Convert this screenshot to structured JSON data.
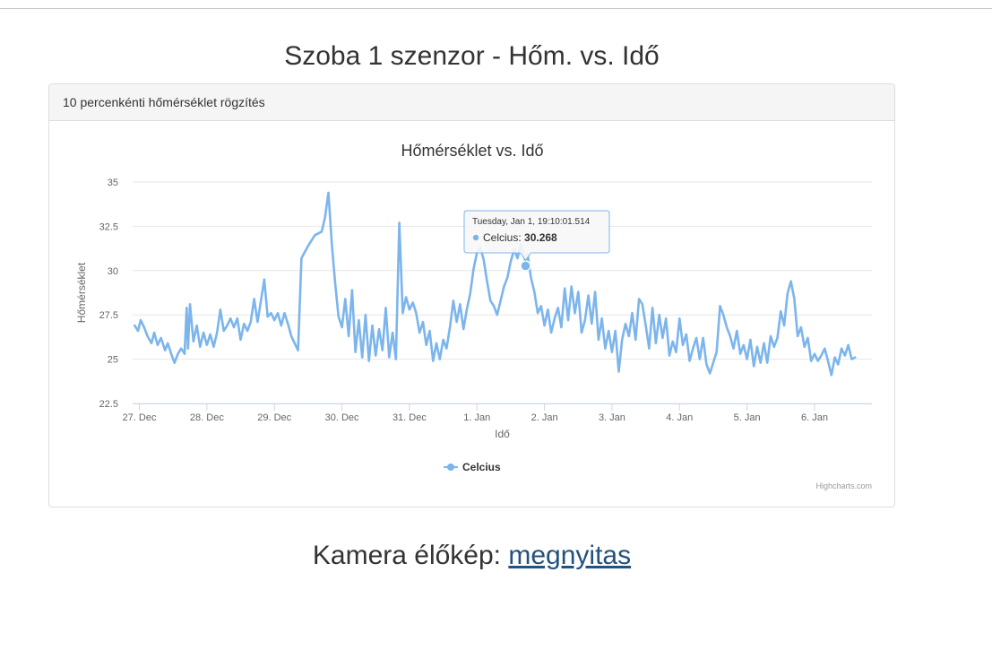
{
  "page": {
    "title": "Szoba 1 szenzor - Hőm. vs. Idő",
    "footer_label": "Kamera élőkép:",
    "footer_link": "megnyitas"
  },
  "panel": {
    "heading": "10 percenkénti hőmérséklet rögzítés"
  },
  "colors": {
    "series": "#7cb5ec",
    "grid": "#e6e6e6",
    "axis": "#ccd6eb",
    "link": "#23527c"
  },
  "tooltip": {
    "header": "Tuesday, Jan 1, 19:10:01.514",
    "series": "Celcius",
    "value": "30.268"
  },
  "chart_data": {
    "type": "line",
    "title": "Hőmérséklet vs. Idő",
    "xlabel": "Idő",
    "ylabel": "Hőmérséklet",
    "credits": "Highcharts.com",
    "ylim": [
      22.5,
      35
    ],
    "yticks": [
      22.5,
      25,
      27.5,
      30,
      32.5,
      35
    ],
    "xlim": [
      -0.1,
      10.85
    ],
    "xticks": [
      {
        "x": 0,
        "label": "27. Dec"
      },
      {
        "x": 1,
        "label": "28. Dec"
      },
      {
        "x": 2,
        "label": "29. Dec"
      },
      {
        "x": 3,
        "label": "30. Dec"
      },
      {
        "x": 4,
        "label": "31. Dec"
      },
      {
        "x": 5,
        "label": "1. Jan"
      },
      {
        "x": 6,
        "label": "2. Jan"
      },
      {
        "x": 7,
        "label": "3. Jan"
      },
      {
        "x": 8,
        "label": "4. Jan"
      },
      {
        "x": 9,
        "label": "5. Jan"
      },
      {
        "x": 10,
        "label": "6. Jan"
      }
    ],
    "legend": "bottom-center",
    "grid": true,
    "series": [
      {
        "name": "Celcius",
        "points": [
          [
            -0.07,
            26.9
          ],
          [
            -0.02,
            26.6
          ],
          [
            0.02,
            27.2
          ],
          [
            0.07,
            26.8
          ],
          [
            0.12,
            26.3
          ],
          [
            0.18,
            25.9
          ],
          [
            0.22,
            26.5
          ],
          [
            0.27,
            25.8
          ],
          [
            0.32,
            26.2
          ],
          [
            0.38,
            25.5
          ],
          [
            0.42,
            25.9
          ],
          [
            0.48,
            25.2
          ],
          [
            0.52,
            24.8
          ],
          [
            0.57,
            25.3
          ],
          [
            0.62,
            25.6
          ],
          [
            0.67,
            25.3
          ],
          [
            0.7,
            27.9
          ],
          [
            0.72,
            25.6
          ],
          [
            0.75,
            28.1
          ],
          [
            0.8,
            26.0
          ],
          [
            0.85,
            26.9
          ],
          [
            0.9,
            25.7
          ],
          [
            0.95,
            26.5
          ],
          [
            1.0,
            25.8
          ],
          [
            1.05,
            26.4
          ],
          [
            1.1,
            25.7
          ],
          [
            1.15,
            26.5
          ],
          [
            1.2,
            27.8
          ],
          [
            1.25,
            26.6
          ],
          [
            1.3,
            26.9
          ],
          [
            1.35,
            27.3
          ],
          [
            1.4,
            26.8
          ],
          [
            1.45,
            27.3
          ],
          [
            1.5,
            26.1
          ],
          [
            1.55,
            27.0
          ],
          [
            1.6,
            26.6
          ],
          [
            1.65,
            27.1
          ],
          [
            1.7,
            28.4
          ],
          [
            1.75,
            27.1
          ],
          [
            1.8,
            28.3
          ],
          [
            1.85,
            29.5
          ],
          [
            1.9,
            27.4
          ],
          [
            1.95,
            27.6
          ],
          [
            2.0,
            27.2
          ],
          [
            2.05,
            27.6
          ],
          [
            2.1,
            26.9
          ],
          [
            2.15,
            27.6
          ],
          [
            2.2,
            27.0
          ],
          [
            2.25,
            26.3
          ],
          [
            2.3,
            25.9
          ],
          [
            2.35,
            25.5
          ],
          [
            2.4,
            30.7
          ],
          [
            2.5,
            31.4
          ],
          [
            2.6,
            32.0
          ],
          [
            2.7,
            32.2
          ],
          [
            2.75,
            33.0
          ],
          [
            2.8,
            34.4
          ],
          [
            2.85,
            31.5
          ],
          [
            2.9,
            29.3
          ],
          [
            2.95,
            27.4
          ],
          [
            3.0,
            26.8
          ],
          [
            3.05,
            28.4
          ],
          [
            3.1,
            26.3
          ],
          [
            3.15,
            28.9
          ],
          [
            3.2,
            25.4
          ],
          [
            3.25,
            27.2
          ],
          [
            3.3,
            25.1
          ],
          [
            3.35,
            27.5
          ],
          [
            3.4,
            24.9
          ],
          [
            3.45,
            26.9
          ],
          [
            3.5,
            25.2
          ],
          [
            3.55,
            26.7
          ],
          [
            3.6,
            25.5
          ],
          [
            3.65,
            27.9
          ],
          [
            3.7,
            25.1
          ],
          [
            3.75,
            26.5
          ],
          [
            3.8,
            25.0
          ],
          [
            3.85,
            32.7
          ],
          [
            3.9,
            27.6
          ],
          [
            3.95,
            28.5
          ],
          [
            4.0,
            27.8
          ],
          [
            4.05,
            28.2
          ],
          [
            4.1,
            27.6
          ],
          [
            4.15,
            26.5
          ],
          [
            4.2,
            27.1
          ],
          [
            4.25,
            25.8
          ],
          [
            4.3,
            26.6
          ],
          [
            4.35,
            24.9
          ],
          [
            4.4,
            25.9
          ],
          [
            4.45,
            25.0
          ],
          [
            4.5,
            26.1
          ],
          [
            4.55,
            25.6
          ],
          [
            4.6,
            26.8
          ],
          [
            4.65,
            28.3
          ],
          [
            4.7,
            27.1
          ],
          [
            4.75,
            28.1
          ],
          [
            4.8,
            26.7
          ],
          [
            4.85,
            27.8
          ],
          [
            4.9,
            28.7
          ],
          [
            4.95,
            30.1
          ],
          [
            5.0,
            31.0
          ],
          [
            5.05,
            31.3
          ],
          [
            5.1,
            30.6
          ],
          [
            5.15,
            29.4
          ],
          [
            5.2,
            28.3
          ],
          [
            5.25,
            28.0
          ],
          [
            5.3,
            27.5
          ],
          [
            5.35,
            28.3
          ],
          [
            5.4,
            29.1
          ],
          [
            5.45,
            29.6
          ],
          [
            5.5,
            30.5
          ],
          [
            5.55,
            31.2
          ],
          [
            5.6,
            30.7
          ],
          [
            5.65,
            31.5
          ],
          [
            5.7,
            30.8
          ],
          [
            5.72,
            30.27
          ],
          [
            5.75,
            30.9
          ],
          [
            5.8,
            29.6
          ],
          [
            5.85,
            28.8
          ],
          [
            5.9,
            27.6
          ],
          [
            5.95,
            28.0
          ],
          [
            6.0,
            26.9
          ],
          [
            6.05,
            27.8
          ],
          [
            6.1,
            26.5
          ],
          [
            6.15,
            27.3
          ],
          [
            6.2,
            27.9
          ],
          [
            6.25,
            26.8
          ],
          [
            6.3,
            29.0
          ],
          [
            6.35,
            27.2
          ],
          [
            6.4,
            29.1
          ],
          [
            6.45,
            27.6
          ],
          [
            6.5,
            28.8
          ],
          [
            6.55,
            26.5
          ],
          [
            6.6,
            27.2
          ],
          [
            6.65,
            28.6
          ],
          [
            6.7,
            27.0
          ],
          [
            6.75,
            28.8
          ],
          [
            6.8,
            26.1
          ],
          [
            6.85,
            27.3
          ],
          [
            6.9,
            25.6
          ],
          [
            6.95,
            26.6
          ],
          [
            7.0,
            25.4
          ],
          [
            7.05,
            26.6
          ],
          [
            7.1,
            24.3
          ],
          [
            7.15,
            26.1
          ],
          [
            7.2,
            27.0
          ],
          [
            7.25,
            26.3
          ],
          [
            7.3,
            27.6
          ],
          [
            7.35,
            26.1
          ],
          [
            7.4,
            28.4
          ],
          [
            7.45,
            28.1
          ],
          [
            7.5,
            26.9
          ],
          [
            7.55,
            25.6
          ],
          [
            7.6,
            27.9
          ],
          [
            7.65,
            25.9
          ],
          [
            7.7,
            27.5
          ],
          [
            7.75,
            26.2
          ],
          [
            7.8,
            27.3
          ],
          [
            7.85,
            25.2
          ],
          [
            7.9,
            26.0
          ],
          [
            7.95,
            25.4
          ],
          [
            8.0,
            27.3
          ],
          [
            8.05,
            25.8
          ],
          [
            8.1,
            26.4
          ],
          [
            8.15,
            24.9
          ],
          [
            8.2,
            25.6
          ],
          [
            8.25,
            26.2
          ],
          [
            8.3,
            25.0
          ],
          [
            8.35,
            26.2
          ],
          [
            8.4,
            24.7
          ],
          [
            8.45,
            24.2
          ],
          [
            8.5,
            24.8
          ],
          [
            8.55,
            25.4
          ],
          [
            8.6,
            28.0
          ],
          [
            8.65,
            27.5
          ],
          [
            8.7,
            26.8
          ],
          [
            8.75,
            26.3
          ],
          [
            8.8,
            25.6
          ],
          [
            8.85,
            26.6
          ],
          [
            8.9,
            25.3
          ],
          [
            8.95,
            25.8
          ],
          [
            9.0,
            25.0
          ],
          [
            9.05,
            26.1
          ],
          [
            9.1,
            24.6
          ],
          [
            9.15,
            25.7
          ],
          [
            9.2,
            24.8
          ],
          [
            9.25,
            25.9
          ],
          [
            9.3,
            24.8
          ],
          [
            9.35,
            26.3
          ],
          [
            9.4,
            25.7
          ],
          [
            9.45,
            26.2
          ],
          [
            9.5,
            27.7
          ],
          [
            9.55,
            26.9
          ],
          [
            9.6,
            28.7
          ],
          [
            9.65,
            29.4
          ],
          [
            9.7,
            28.4
          ],
          [
            9.75,
            26.3
          ],
          [
            9.8,
            26.8
          ],
          [
            9.85,
            25.7
          ],
          [
            9.9,
            26.2
          ],
          [
            9.95,
            24.9
          ],
          [
            10.0,
            25.3
          ],
          [
            10.05,
            24.9
          ],
          [
            10.1,
            25.2
          ],
          [
            10.15,
            25.6
          ],
          [
            10.2,
            24.9
          ],
          [
            10.25,
            24.1
          ],
          [
            10.3,
            25.1
          ],
          [
            10.35,
            24.7
          ],
          [
            10.4,
            25.6
          ],
          [
            10.45,
            25.2
          ],
          [
            10.5,
            25.8
          ],
          [
            10.55,
            25.0
          ],
          [
            10.6,
            25.1
          ]
        ]
      }
    ]
  }
}
